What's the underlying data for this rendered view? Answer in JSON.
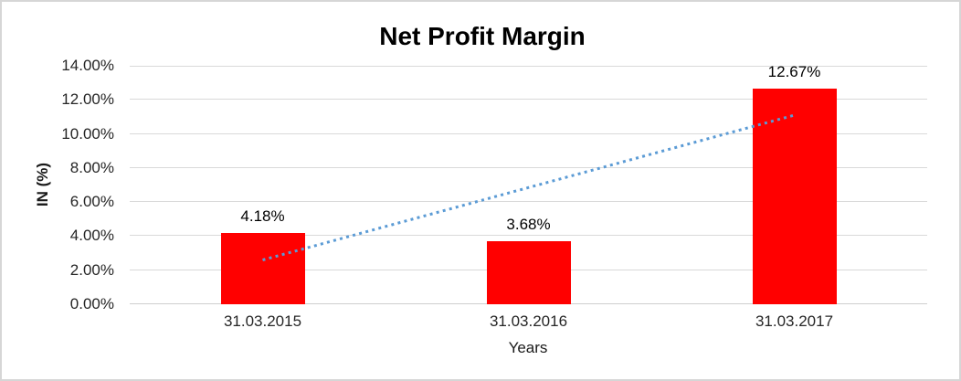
{
  "window": {
    "background_color": "#ffffff",
    "border_color": "#d6d6d6"
  },
  "chart_data": {
    "type": "bar",
    "title": "Net Profit Margin",
    "xlabel": "Years",
    "ylabel": "IN (%)",
    "categories": [
      "31.03.2015",
      "31.03.2016",
      "31.03.2017"
    ],
    "values": [
      4.18,
      3.68,
      12.67
    ],
    "value_labels": [
      "4.18%",
      "3.68%",
      "12.67%"
    ],
    "bar_color": "#ff0000",
    "ylim": [
      0,
      14
    ],
    "y_tick_values": [
      0,
      2,
      4,
      6,
      8,
      10,
      12,
      14
    ],
    "y_tick_labels": [
      "0.00%",
      "2.00%",
      "4.00%",
      "6.00%",
      "8.00%",
      "10.00%",
      "12.00%",
      "14.00%"
    ],
    "grid": true,
    "gridline_color": "#d9d9d9",
    "legend": "none",
    "trendline": {
      "type": "linear",
      "style": "dotted",
      "color": "#5b9bd5",
      "start_x_index": 0,
      "end_x_index": 2,
      "start_pct": 2.6,
      "end_pct": 11.1
    }
  }
}
